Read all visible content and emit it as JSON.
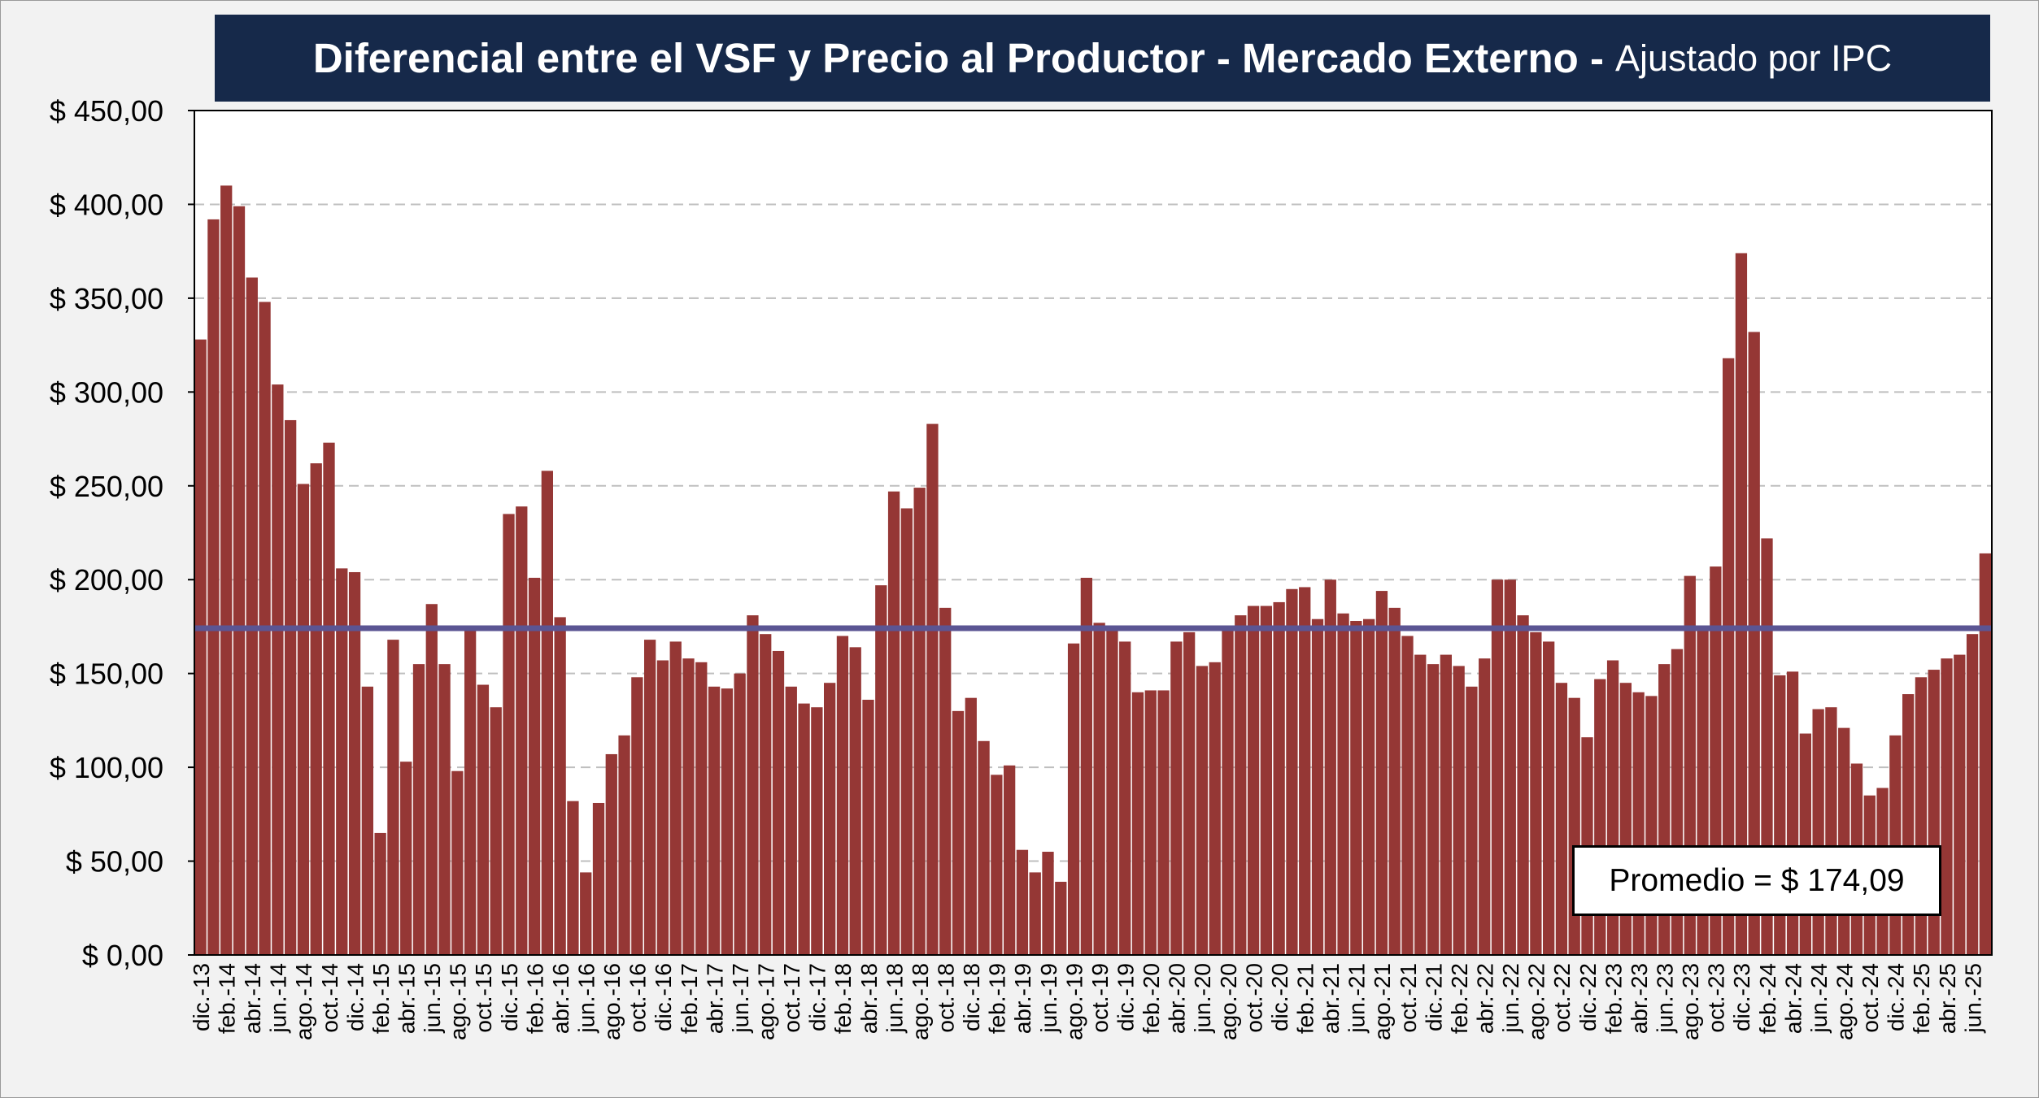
{
  "chart_data": {
    "type": "bar",
    "title": "Diferencial entre el VSF y Precio al Productor - Mercado Externo -",
    "subtitle": "Ajustado por IPC",
    "xlabel": "",
    "ylabel": "",
    "ylim": [
      0,
      450
    ],
    "yticks": [
      0,
      50,
      100,
      150,
      200,
      250,
      300,
      350,
      400,
      450
    ],
    "ytick_labels": [
      "$ 0,00",
      "$ 50,00",
      "$ 100,00",
      "$ 150,00",
      "$ 200,00",
      "$ 250,00",
      "$ 300,00",
      "$ 350,00",
      "$ 400,00",
      "$ 450,00"
    ],
    "grid": true,
    "legend": "none",
    "bar_color": "#953735",
    "average_line_color": "#5b5593",
    "average": 174.09,
    "average_label": "Promedio = $ 174,09",
    "x_tick_labels": [
      "dic.-13",
      "feb.-14",
      "abr.-14",
      "jun.-14",
      "ago.-14",
      "oct.-14",
      "dic.-14",
      "feb.-15",
      "abr.-15",
      "jun.-15",
      "ago.-15",
      "oct.-15",
      "dic.-15",
      "feb.-16",
      "abr.-16",
      "jun.-16",
      "ago.-16",
      "oct.-16",
      "dic.-16",
      "feb.-17",
      "abr.-17",
      "jun.-17",
      "ago.-17",
      "oct.-17",
      "dic.-17",
      "feb.-18",
      "abr.-18",
      "jun.-18",
      "ago.-18",
      "oct.-18",
      "dic.-18",
      "feb.-19",
      "abr.-19",
      "jun.-19",
      "ago.-19",
      "oct.-19",
      "dic.-19",
      "feb.-20",
      "abr.-20",
      "jun.-20",
      "ago.-20",
      "oct.-20",
      "dic.-20",
      "feb.-21",
      "abr.-21",
      "jun.-21",
      "ago.-21",
      "oct.-21",
      "dic.-21",
      "feb.-22",
      "abr.-22",
      "jun.-22",
      "ago.-22",
      "oct.-22",
      "dic.-22",
      "feb.-23",
      "abr.-23",
      "jun.-23",
      "ago.-23",
      "oct.-23",
      "dic.-23",
      "feb.-24",
      "abr.-24",
      "jun.-24",
      "ago.-24",
      "oct.-24",
      "dic.-24",
      "feb.-25",
      "abr.-25",
      "jun.-25"
    ],
    "values": [
      328,
      392,
      410,
      399,
      361,
      348,
      304,
      285,
      251,
      262,
      273,
      206,
      204,
      143,
      65,
      168,
      103,
      155,
      187,
      155,
      98,
      173,
      144,
      132,
      235,
      239,
      201,
      258,
      180,
      82,
      44,
      81,
      107,
      117,
      148,
      168,
      157,
      167,
      158,
      156,
      143,
      142,
      150,
      181,
      171,
      162,
      143,
      134,
      132,
      145,
      170,
      164,
      136,
      197,
      247,
      238,
      249,
      283,
      185,
      130,
      137,
      114,
      96,
      101,
      56,
      44,
      55,
      39,
      166,
      201,
      177,
      175,
      167,
      140,
      141,
      141,
      167,
      172,
      154,
      156,
      175,
      181,
      186,
      186,
      188,
      195,
      196,
      179,
      200,
      182,
      178,
      179,
      194,
      185,
      170,
      160,
      155,
      160,
      154,
      143,
      158,
      200,
      200,
      181,
      172,
      167,
      145,
      137,
      116,
      147,
      157,
      145,
      140,
      138,
      155,
      163,
      202,
      175,
      207,
      318,
      374,
      332,
      222,
      149,
      151,
      118,
      131,
      132,
      121,
      102,
      85,
      89,
      117,
      139,
      148,
      152,
      158,
      160,
      171,
      214
    ]
  }
}
